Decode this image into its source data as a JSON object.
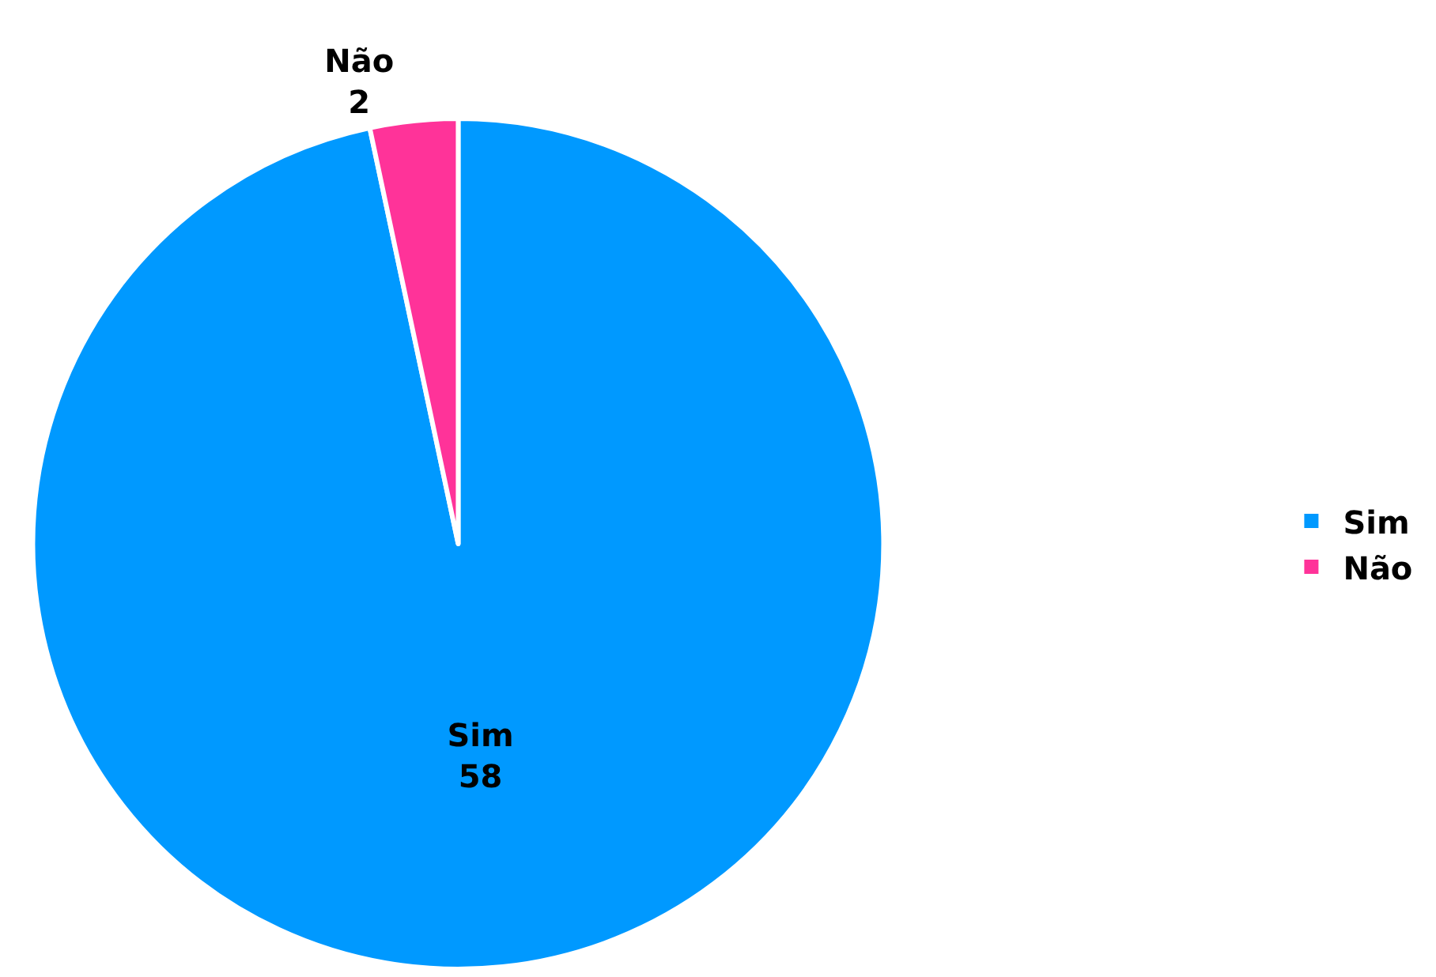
{
  "chart_data": {
    "type": "pie",
    "categories": [
      "Sim",
      "Não"
    ],
    "values": [
      58,
      2
    ],
    "colors": [
      "#0099ff",
      "#ff3399"
    ],
    "data_labels": true,
    "legend": "right"
  }
}
